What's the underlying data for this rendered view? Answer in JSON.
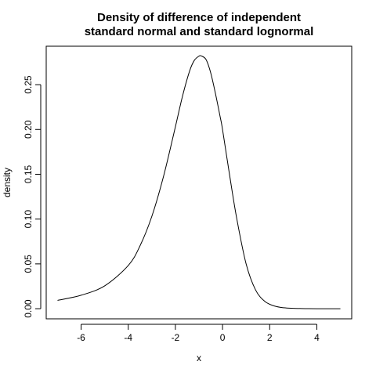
{
  "chart_data": {
    "type": "line",
    "title_line1": "Density of difference of independent",
    "title_line2": "standard normal and standard lognormal",
    "xlabel": "x",
    "ylabel": "density",
    "xlim": [
      -7.48,
      5.48
    ],
    "ylim": [
      -0.0113,
      0.2929
    ],
    "x_ticks": [
      "-6",
      "-4",
      "-2",
      "0",
      "2",
      "4"
    ],
    "y_ticks": [
      "0.00",
      "0.05",
      "0.10",
      "0.15",
      "0.20",
      "0.25"
    ],
    "grid": false,
    "series": [
      {
        "x": [
          -7.0,
          -6.0,
          -5.0,
          -4.0,
          -3.5,
          -3.0,
          -2.5,
          -2.0,
          -1.7,
          -1.4,
          -1.2,
          -1.0,
          -0.9,
          -0.7,
          -0.5,
          -0.3,
          -0.1,
          0.0,
          0.3,
          0.6,
          1.0,
          1.4,
          1.8,
          2.2,
          2.6,
          3.0,
          3.5,
          4.0,
          5.0
        ],
        "y": [
          0.0093,
          0.015,
          0.0255,
          0.0482,
          0.0702,
          0.103,
          0.148,
          0.203,
          0.237,
          0.265,
          0.277,
          0.2818,
          0.282,
          0.278,
          0.263,
          0.24,
          0.214,
          0.2,
          0.149,
          0.101,
          0.05,
          0.021,
          0.008,
          0.003,
          0.001,
          0.0004,
          0.0001,
          0.0,
          0.0
        ]
      }
    ]
  }
}
